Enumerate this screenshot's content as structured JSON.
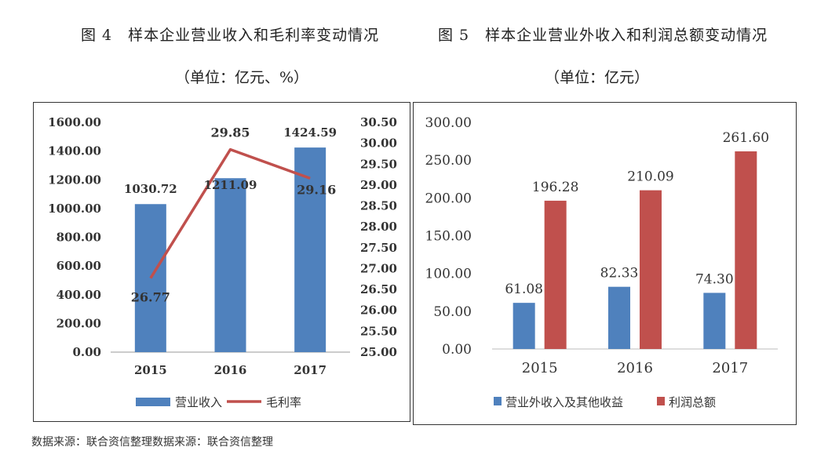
{
  "source_note": "数据来源：联合资信整理数据来源：联合资信整理",
  "chart_data": [
    {
      "type": "bar",
      "title": "图 4　样本企业营业收入和毛利率变动情况",
      "subtitle": "（单位：亿元、%）",
      "categories": [
        "2015",
        "2016",
        "2017"
      ],
      "series": [
        {
          "name": "营业收入",
          "type": "bar",
          "axis": "left",
          "color": "#4f81bd",
          "values": [
            1030.72,
            1211.09,
            1424.59
          ]
        },
        {
          "name": "毛利率",
          "type": "line",
          "axis": "right",
          "color": "#c0504d",
          "values": [
            26.77,
            29.85,
            29.16
          ]
        }
      ],
      "ylim": [
        0,
        1600
      ],
      "yticks": [
        "0.00",
        "200.00",
        "400.00",
        "600.00",
        "800.00",
        "1000.00",
        "1200.00",
        "1400.00",
        "1600.00"
      ],
      "y2lim": [
        25,
        30.5
      ],
      "y2ticks": [
        "25.00",
        "25.50",
        "26.00",
        "26.50",
        "27.00",
        "27.50",
        "28.00",
        "28.50",
        "29.00",
        "29.50",
        "30.00",
        "30.50"
      ],
      "bar_labels": [
        "1030.72",
        "1211.09",
        "1424.59"
      ],
      "line_labels": [
        "26.77",
        "29.85",
        "29.16"
      ],
      "legend": "bottom",
      "grid": false
    },
    {
      "type": "bar",
      "title": "图 5　样本企业营业外收入和利润总额变动情况",
      "subtitle": "（单位：亿元）",
      "categories": [
        "2015",
        "2016",
        "2017"
      ],
      "series": [
        {
          "name": "营业外收入及其他收益",
          "color": "#4f81bd",
          "values": [
            61.08,
            82.33,
            74.3
          ],
          "labels": [
            "61.08",
            "82.33",
            "74.30"
          ]
        },
        {
          "name": "利润总额",
          "color": "#c0504d",
          "values": [
            196.28,
            210.09,
            261.6
          ],
          "labels": [
            "196.28",
            "210.09",
            "261.60"
          ]
        }
      ],
      "ylim": [
        0,
        300
      ],
      "yticks": [
        "0.00",
        "50.00",
        "100.00",
        "150.00",
        "200.00",
        "250.00",
        "300.00"
      ],
      "legend": "bottom",
      "grid": false
    }
  ]
}
